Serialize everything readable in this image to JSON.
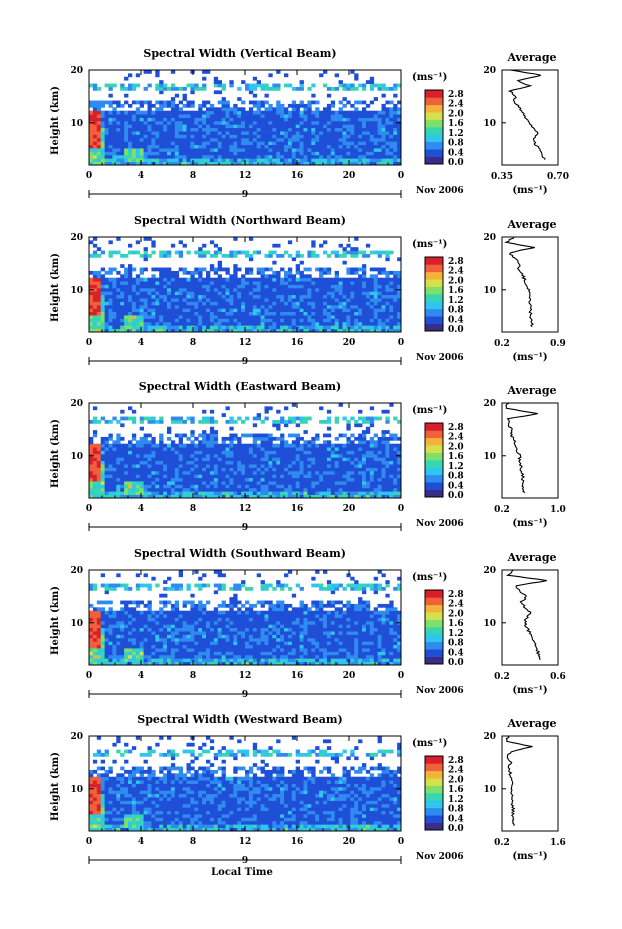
{
  "colors": {
    "scale": [
      "#3a2d8a",
      "#1f4fd6",
      "#2f8bf0",
      "#2fc6ee",
      "#37d6b0",
      "#7ee06a",
      "#d6e04a",
      "#f5b23a",
      "#f0603a",
      "#d8202a"
    ],
    "hot": "#e0302a",
    "line": "#000000"
  },
  "shared": {
    "ylabel": "Height (km)",
    "colorbar_unit": "(ms⁻¹)",
    "colorbar_ticks": [
      "2.8",
      "2.4",
      "2.0",
      "1.6",
      "1.2",
      "0.8",
      "0.4",
      "0.0"
    ],
    "xticks": [
      "0",
      "4",
      "8",
      "12",
      "16",
      "20",
      "0"
    ],
    "yticks": [
      "20",
      "10"
    ],
    "date_mark": "9",
    "date_label": "Nov 2006",
    "xlabel": "Local Time",
    "avg_title": "Average",
    "avg_unit": "(ms⁻¹)"
  },
  "chart_data": [
    {
      "type": "heatmap",
      "title": "Spectral Width (Vertical Beam)",
      "xlabel": "",
      "ylabel": "Height (km)",
      "xlim_hours": [
        0,
        24
      ],
      "ylim_km": [
        2,
        20
      ],
      "zlim": [
        0.0,
        3.0
      ],
      "avg": {
        "title": "Average",
        "xlim": [
          0.35,
          0.7
        ],
        "xticks": [
          "0.35",
          "0.70"
        ],
        "heights": [
          3,
          4,
          5,
          6,
          7,
          8,
          9,
          10,
          11,
          12,
          13,
          14,
          15,
          16,
          17,
          18,
          19,
          20
        ],
        "values": [
          0.62,
          0.6,
          0.58,
          0.56,
          0.55,
          0.57,
          0.54,
          0.52,
          0.5,
          0.48,
          0.46,
          0.42,
          0.44,
          0.4,
          0.52,
          0.45,
          0.6,
          0.4
        ]
      }
    },
    {
      "type": "heatmap",
      "title": "Spectral Width (Northward Beam)",
      "xlabel": "",
      "ylabel": "Height (km)",
      "xlim_hours": [
        0,
        24
      ],
      "ylim_km": [
        2,
        20
      ],
      "zlim": [
        0.0,
        3.0
      ],
      "avg": {
        "title": "Average",
        "xlim": [
          0.2,
          0.9
        ],
        "xticks": [
          "0.2",
          "0.9"
        ],
        "heights": [
          3,
          4,
          5,
          6,
          7,
          8,
          9,
          10,
          11,
          12,
          13,
          14,
          15,
          16,
          17,
          18,
          19,
          20
        ],
        "values": [
          0.58,
          0.57,
          0.56,
          0.55,
          0.56,
          0.54,
          0.55,
          0.53,
          0.5,
          0.48,
          0.45,
          0.4,
          0.42,
          0.35,
          0.3,
          0.6,
          0.25,
          0.35
        ]
      }
    },
    {
      "type": "heatmap",
      "title": "Spectral Width (Eastward Beam)",
      "xlabel": "",
      "ylabel": "Height (km)",
      "xlim_hours": [
        0,
        24
      ],
      "ylim_km": [
        2,
        20
      ],
      "zlim": [
        0.0,
        3.0
      ],
      "avg": {
        "title": "Average",
        "xlim": [
          0.2,
          1.0
        ],
        "xticks": [
          "0.2",
          "1.0"
        ],
        "heights": [
          3,
          4,
          5,
          6,
          7,
          8,
          9,
          10,
          11,
          12,
          13,
          14,
          15,
          16,
          17,
          18,
          19,
          20
        ],
        "values": [
          0.52,
          0.5,
          0.49,
          0.5,
          0.48,
          0.47,
          0.46,
          0.45,
          0.42,
          0.4,
          0.38,
          0.33,
          0.35,
          0.28,
          0.3,
          0.7,
          0.25,
          0.3
        ]
      }
    },
    {
      "type": "heatmap",
      "title": "Spectral Width (Southward Beam)",
      "xlabel": "",
      "ylabel": "Height (km)",
      "xlim_hours": [
        0,
        24
      ],
      "ylim_km": [
        2,
        20
      ],
      "zlim": [
        0.0,
        3.0
      ],
      "avg": {
        "title": "Average",
        "xlim": [
          0.2,
          0.6
        ],
        "xticks": [
          "0.2",
          "0.6"
        ],
        "heights": [
          3,
          4,
          5,
          6,
          7,
          8,
          9,
          10,
          11,
          12,
          13,
          14,
          15,
          16,
          17,
          18,
          19,
          20
        ],
        "values": [
          0.48,
          0.46,
          0.45,
          0.44,
          0.42,
          0.4,
          0.38,
          0.36,
          0.38,
          0.4,
          0.36,
          0.34,
          0.38,
          0.32,
          0.3,
          0.52,
          0.24,
          0.28
        ]
      }
    },
    {
      "type": "heatmap",
      "title": "Spectral Width (Westward Beam)",
      "xlabel": "Local Time",
      "ylabel": "Height (km)",
      "xlim_hours": [
        0,
        24
      ],
      "ylim_km": [
        2,
        20
      ],
      "zlim": [
        0.0,
        3.0
      ],
      "avg": {
        "title": "Average",
        "xlim": [
          0.2,
          1.6
        ],
        "xticks": [
          "0.2",
          "1.6"
        ],
        "heights": [
          3,
          4,
          5,
          6,
          7,
          8,
          9,
          10,
          11,
          12,
          13,
          14,
          15,
          16,
          17,
          18,
          19,
          20
        ],
        "values": [
          0.5,
          0.48,
          0.47,
          0.48,
          0.46,
          0.45,
          0.44,
          0.43,
          0.45,
          0.42,
          0.4,
          0.38,
          0.42,
          0.35,
          0.4,
          0.95,
          0.3,
          0.35
        ]
      }
    }
  ]
}
